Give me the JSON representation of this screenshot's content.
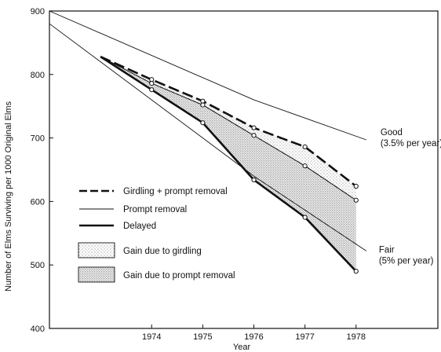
{
  "chart_data": {
    "type": "line",
    "title": "",
    "xlabel": "Year",
    "ylabel": "Number of Elms Surviving per 1000 Original Elms",
    "xlim": [
      1972.0,
      1979.6
    ],
    "ylim": [
      400,
      900
    ],
    "x_ticks": [
      1974,
      1975,
      1976,
      1977,
      1978
    ],
    "y_ticks": [
      400,
      500,
      600,
      700,
      800,
      900
    ],
    "grid": false,
    "legend_position": "left-center",
    "series": [
      {
        "name": "Girdling + prompt removal",
        "style": "dashed-heavy",
        "markers": true,
        "x": [
          1973.0,
          1974,
          1975,
          1976,
          1977,
          1978
        ],
        "y": [
          828,
          792,
          758,
          716,
          686,
          624
        ]
      },
      {
        "name": "Prompt removal",
        "style": "thin",
        "markers": true,
        "x": [
          1973.0,
          1974,
          1975,
          1976,
          1977,
          1978
        ],
        "y": [
          828,
          786,
          752,
          704,
          656,
          602
        ]
      },
      {
        "name": "Delayed",
        "style": "solid-heavy",
        "markers": true,
        "x": [
          1973.0,
          1974,
          1975,
          1976,
          1977,
          1978
        ],
        "y": [
          828,
          776,
          724,
          634,
          575,
          490
        ]
      }
    ],
    "reference_lines": [
      {
        "name": "Good",
        "label_lines": [
          "Good",
          "(3.5% per year)"
        ],
        "x": [
          1972.0,
          1976.0,
          1978.2
        ],
        "y": [
          900,
          760,
          697
        ]
      },
      {
        "name": "Fair",
        "label_lines": [
          "Fair",
          "(5% per year)"
        ],
        "x": [
          1972.0,
          1976.0,
          1978.2
        ],
        "y": [
          880,
          640,
          522
        ]
      }
    ],
    "shaded_areas": [
      {
        "name": "Gain due to girdling",
        "fill": "light-stipple",
        "between": [
          "Prompt removal",
          "Girdling + prompt removal"
        ]
      },
      {
        "name": "Gain due to prompt removal",
        "fill": "dense-stipple",
        "between": [
          "Delayed",
          "Prompt removal"
        ]
      }
    ],
    "legend_entries": [
      "Girdling + prompt removal",
      "Prompt removal",
      "Delayed",
      "Gain due to girdling",
      "Gain due to prompt removal"
    ],
    "colors": {
      "line": "#111111",
      "stipple": "#555555",
      "background": "#ffffff"
    }
  }
}
